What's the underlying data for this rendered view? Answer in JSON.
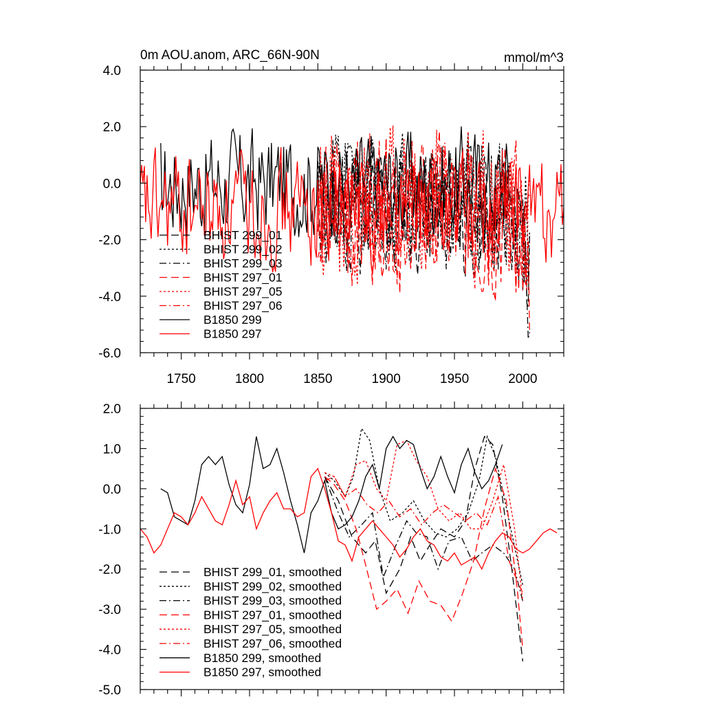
{
  "chart_data": [
    {
      "type": "line",
      "title": "0m AOU.anom, ARC_66N-90N",
      "units": "mmol/m^3",
      "xlim": [
        1720,
        2030
      ],
      "ylim": [
        -6.0,
        4.0
      ],
      "xticks": [
        1750,
        1800,
        1850,
        1900,
        1950,
        2000
      ],
      "yticks": [
        -6.0,
        -4.0,
        -2.0,
        0.0,
        2.0,
        4.0
      ],
      "ytick_labels": [
        "-6.0",
        "-4.0",
        "-2.0",
        "0.0",
        "2.0",
        "4.0"
      ],
      "xtick_labels": [
        "1750",
        "1800",
        "1850",
        "1900",
        "1950",
        "2000"
      ],
      "legend_position": "lower-left",
      "series": [
        {
          "name": "BHIST 299_01",
          "color": "#000000",
          "dash": "long-dash",
          "x_start": 1850,
          "x_end": 2005,
          "seed": 11,
          "mean": -0.9,
          "amp": 1.6,
          "end_dip": -3.5
        },
        {
          "name": "BHIST 299_02",
          "color": "#000000",
          "dash": "dotted",
          "x_start": 1850,
          "x_end": 2005,
          "seed": 12,
          "mean": -0.6,
          "amp": 1.6,
          "end_dip": -3.2
        },
        {
          "name": "BHIST 299_03",
          "color": "#000000",
          "dash": "dash-dot",
          "x_start": 1850,
          "x_end": 2005,
          "seed": 13,
          "mean": -0.9,
          "amp": 1.5,
          "end_dip": -3.8
        },
        {
          "name": "BHIST 297_01",
          "color": "#ff0000",
          "dash": "long-dash",
          "x_start": 1850,
          "x_end": 2005,
          "seed": 14,
          "mean": -1.3,
          "amp": 1.8,
          "end_dip": -4.5
        },
        {
          "name": "BHIST 297_05",
          "color": "#ff0000",
          "dash": "dotted",
          "x_start": 1850,
          "x_end": 2005,
          "seed": 15,
          "mean": -0.6,
          "amp": 1.7,
          "end_dip": -3.8
        },
        {
          "name": "BHIST 297_06",
          "color": "#ff0000",
          "dash": "dash-dot",
          "x_start": 1850,
          "x_end": 2005,
          "seed": 16,
          "mean": -0.9,
          "amp": 1.6,
          "end_dip": -4.2
        },
        {
          "name": "B1850 299",
          "color": "#000000",
          "dash": "solid",
          "x_start": 1735,
          "x_end": 1990,
          "seed": 17,
          "mean": 0.0,
          "amp": 1.3,
          "end_dip": 0
        },
        {
          "name": "B1850 297",
          "color": "#ff0000",
          "dash": "solid",
          "x_start": 1720,
          "x_end": 2030,
          "seed": 18,
          "mean": -0.9,
          "amp": 1.3,
          "end_dip": 0
        }
      ]
    },
    {
      "type": "line",
      "title": "",
      "xlim": [
        1720,
        2030
      ],
      "ylim": [
        -5.0,
        2.0
      ],
      "yticks": [
        -5.0,
        -4.0,
        -3.0,
        -2.0,
        -1.0,
        0.0,
        1.0,
        2.0
      ],
      "ytick_labels": [
        "-5.0",
        "-4.0",
        "-3.0",
        "-2.0",
        "-1.0",
        "0.0",
        "1.0",
        "2.0"
      ],
      "xticks": [
        1750,
        1800,
        1850,
        1900,
        1950,
        2000
      ],
      "legend_position": "lower-left",
      "series": [
        {
          "name": "BHIST 299_01, smoothed",
          "color": "#000000",
          "dash": "long-dash",
          "x": [
            1855,
            1865,
            1875,
            1885,
            1892,
            1900,
            1910,
            1918,
            1925,
            1932,
            1940,
            1950,
            1958,
            1965,
            1972,
            1978,
            1985,
            1992,
            2000
          ],
          "y": [
            0.3,
            -0.3,
            -1.2,
            -1.6,
            -1.3,
            -2.6,
            -2.0,
            -1.2,
            -1.8,
            -1.4,
            -1.0,
            -1.2,
            -0.8,
            0.5,
            1.3,
            1.1,
            -0.2,
            -2.0,
            -4.3
          ]
        },
        {
          "name": "BHIST 299_02, smoothed",
          "color": "#000000",
          "dash": "dotted",
          "x": [
            1855,
            1862,
            1870,
            1876,
            1882,
            1888,
            1895,
            1903,
            1912,
            1920,
            1928,
            1936,
            1944,
            1952,
            1960,
            1968,
            1974,
            1980,
            1990,
            2000
          ],
          "y": [
            0.4,
            0.2,
            -0.2,
            0.3,
            1.5,
            1.2,
            0.0,
            -0.8,
            -0.6,
            -0.3,
            -0.8,
            -1.1,
            -1.2,
            -1.0,
            -0.6,
            0.2,
            1.3,
            0.8,
            -0.8,
            -2.4
          ]
        },
        {
          "name": "BHIST 299_03, smoothed",
          "color": "#000000",
          "dash": "dash-dot",
          "x": [
            1855,
            1865,
            1873,
            1882,
            1890,
            1898,
            1906,
            1915,
            1922,
            1930,
            1938,
            1946,
            1955,
            1963,
            1970,
            1978,
            1986,
            1994,
            2000
          ],
          "y": [
            0.3,
            -0.6,
            -1.2,
            -0.9,
            -0.6,
            -2.2,
            -1.5,
            -0.8,
            -1.1,
            -1.2,
            -2.0,
            -1.3,
            -1.2,
            -1.8,
            -1.6,
            -1.4,
            -1.6,
            -2.0,
            -2.8
          ]
        },
        {
          "name": "BHIST 297_01, smoothed",
          "color": "#ff0000",
          "dash": "long-dash",
          "x": [
            1855,
            1862,
            1870,
            1878,
            1885,
            1893,
            1900,
            1908,
            1916,
            1924,
            1932,
            1940,
            1948,
            1956,
            1964,
            1972,
            1980,
            1988,
            1996,
            2000
          ],
          "y": [
            0.3,
            0.1,
            -0.3,
            -1.0,
            -1.9,
            -3.0,
            -2.8,
            -2.5,
            -3.1,
            -2.3,
            -2.8,
            -2.9,
            -3.3,
            -2.6,
            -1.8,
            -0.5,
            0.5,
            -0.3,
            -2.5,
            -4.0
          ]
        },
        {
          "name": "BHIST 297_05, smoothed",
          "color": "#ff0000",
          "dash": "dotted",
          "x": [
            1855,
            1862,
            1870,
            1878,
            1885,
            1893,
            1900,
            1908,
            1915,
            1922,
            1930,
            1938,
            1946,
            1954,
            1962,
            1970,
            1978,
            1986,
            1994,
            2000
          ],
          "y": [
            0.4,
            0.3,
            -0.2,
            0.6,
            0.7,
            0.0,
            -0.3,
            1.1,
            1.2,
            0.7,
            0.3,
            -0.5,
            -0.8,
            -0.6,
            -1.0,
            -1.0,
            -0.3,
            0.6,
            -1.0,
            -2.8
          ]
        },
        {
          "name": "BHIST 297_06, smoothed",
          "color": "#ff0000",
          "dash": "dash-dot",
          "x": [
            1855,
            1862,
            1870,
            1878,
            1886,
            1894,
            1902,
            1910,
            1918,
            1926,
            1934,
            1942,
            1950,
            1958,
            1966,
            1974,
            1982,
            1990,
            1996,
            2000
          ],
          "y": [
            0.2,
            0.3,
            -0.2,
            0.0,
            -0.4,
            -0.6,
            -0.3,
            -0.7,
            -0.5,
            -0.9,
            -0.6,
            -0.4,
            -0.6,
            -0.8,
            -0.6,
            -0.9,
            -0.2,
            -1.8,
            -2.3,
            -2.6
          ]
        },
        {
          "name": "B1850 299, smoothed",
          "color": "#000000",
          "dash": "solid",
          "x": [
            1735,
            1740,
            1745,
            1750,
            1755,
            1760,
            1765,
            1770,
            1775,
            1780,
            1785,
            1790,
            1795,
            1800,
            1805,
            1810,
            1815,
            1820,
            1825,
            1830,
            1835,
            1840,
            1845,
            1850,
            1855,
            1860,
            1865,
            1870,
            1875,
            1880,
            1885,
            1890,
            1895,
            1900,
            1905,
            1910,
            1915,
            1920,
            1925,
            1930,
            1935,
            1940,
            1945,
            1950,
            1955,
            1960,
            1965,
            1970,
            1975,
            1980,
            1985
          ],
          "y": [
            0.0,
            -0.1,
            -0.7,
            -0.8,
            -0.9,
            -0.3,
            0.6,
            0.8,
            0.6,
            0.8,
            0.1,
            -0.4,
            -0.6,
            0.1,
            1.3,
            0.5,
            0.6,
            1.0,
            0.4,
            -0.3,
            -0.9,
            -1.6,
            -0.6,
            -0.3,
            0.2,
            -0.6,
            -1.0,
            -0.9,
            -0.7,
            -0.3,
            0.3,
            0.6,
            0.0,
            1.0,
            1.3,
            1.0,
            1.2,
            1.1,
            0.5,
            0.0,
            0.3,
            0.8,
            0.3,
            -0.1,
            0.6,
            1.0,
            0.4,
            0.0,
            0.2,
            0.6,
            1.1
          ]
        },
        {
          "name": "B1850 297, smoothed",
          "color": "#ff0000",
          "dash": "solid",
          "x": [
            1720,
            1725,
            1730,
            1735,
            1740,
            1745,
            1750,
            1755,
            1760,
            1765,
            1770,
            1775,
            1780,
            1785,
            1790,
            1795,
            1800,
            1805,
            1810,
            1815,
            1820,
            1825,
            1830,
            1835,
            1840,
            1845,
            1850,
            1855,
            1860,
            1865,
            1870,
            1875,
            1880,
            1885,
            1890,
            1895,
            1900,
            1905,
            1910,
            1915,
            1920,
            1925,
            1930,
            1935,
            1940,
            1945,
            1950,
            1955,
            1960,
            1965,
            1970,
            1975,
            1980,
            1985,
            1990,
            1995,
            2000,
            2005,
            2010,
            2015,
            2020,
            2025
          ],
          "y": [
            -1.0,
            -1.2,
            -1.6,
            -1.4,
            -1.0,
            -0.6,
            -0.7,
            -0.9,
            -0.6,
            -0.2,
            -0.5,
            -0.8,
            -0.9,
            -0.4,
            0.2,
            -0.4,
            -0.2,
            -1.0,
            -0.6,
            -0.3,
            -0.1,
            -0.5,
            -0.5,
            -0.7,
            -0.6,
            0.3,
            0.5,
            0.0,
            -0.6,
            -1.3,
            -1.4,
            -1.8,
            -1.2,
            -1.0,
            -0.8,
            -1.0,
            -1.2,
            -1.4,
            -1.7,
            -1.5,
            -1.2,
            -1.0,
            -1.3,
            -1.4,
            -1.7,
            -1.8,
            -1.6,
            -1.9,
            -1.8,
            -1.7,
            -2.0,
            -1.6,
            -1.3,
            -1.1,
            -1.2,
            -1.5,
            -1.6,
            -1.5,
            -1.3,
            -1.1,
            -1.0,
            -1.1
          ]
        }
      ]
    }
  ]
}
